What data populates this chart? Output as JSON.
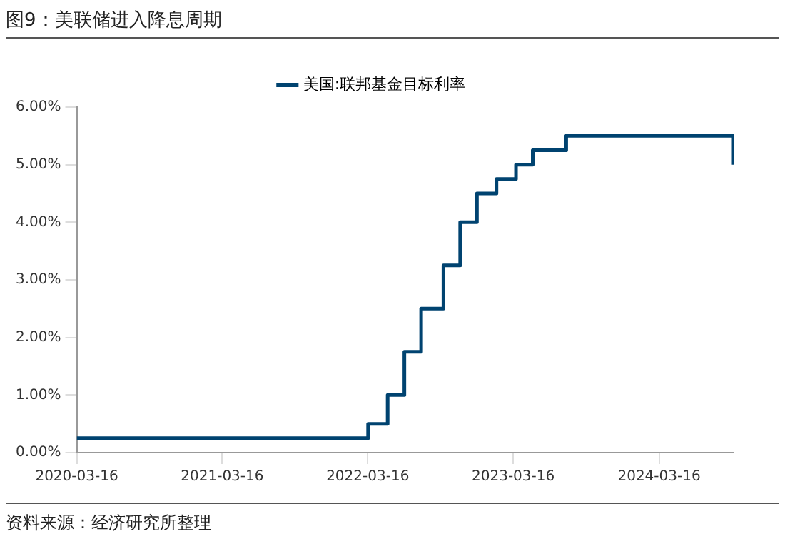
{
  "chart_data": {
    "type": "step",
    "title": "图9：美联储进入降息周期",
    "annotations": [
      "资料来源：经济研究所整理"
    ],
    "x": [
      "2020-03-16",
      "2022-03-17",
      "2022-05-05",
      "2022-06-16",
      "2022-07-28",
      "2022-09-22",
      "2022-11-03",
      "2022-12-15",
      "2023-02-02",
      "2023-03-23",
      "2023-05-04",
      "2023-07-27",
      "2024-09-19"
    ],
    "series": [
      {
        "name": "美国:联邦基金目标利率",
        "color": "#004370",
        "values": [
          0.25,
          0.5,
          1.0,
          1.75,
          2.5,
          3.25,
          4.0,
          4.5,
          4.75,
          5.0,
          5.25,
          5.5,
          5.0
        ]
      }
    ],
    "xlim": [
      "2020-03-16",
      "2024-09-19"
    ],
    "xticks": [
      "2020-03-16",
      "2021-03-16",
      "2022-03-16",
      "2023-03-16",
      "2024-03-16"
    ],
    "ylim": [
      0,
      6
    ],
    "yticks": [
      {
        "value": 0,
        "label": "0.00%"
      },
      {
        "value": 1,
        "label": "1.00%"
      },
      {
        "value": 2,
        "label": "2.00%"
      },
      {
        "value": 3,
        "label": "3.00%"
      },
      {
        "value": 4,
        "label": "4.00%"
      },
      {
        "value": 5,
        "label": "5.00%"
      },
      {
        "value": 6,
        "label": "6.00%"
      }
    ],
    "legend": "top",
    "grid": false,
    "marker": "none",
    "line_style": "solid"
  }
}
